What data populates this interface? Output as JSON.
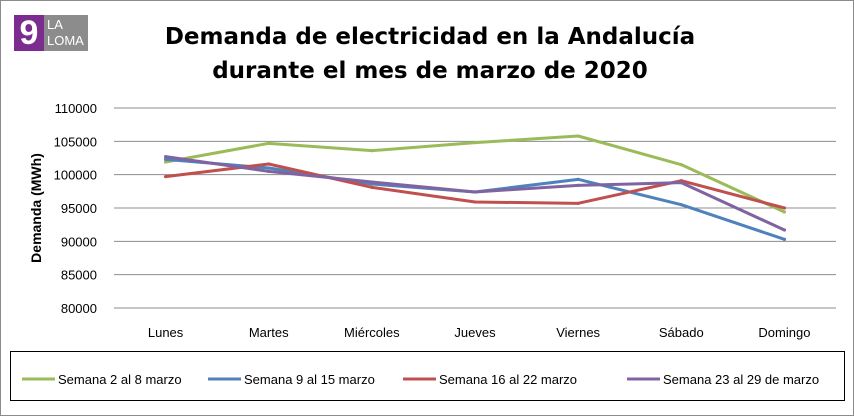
{
  "logo": {
    "number": "9",
    "line1": "LA",
    "line2": "LOMA"
  },
  "chart_data": {
    "type": "line",
    "title_line1": "Demanda de electricidad en la Andalucía",
    "title_line2": "durante el mes de marzo de 2020",
    "xlabel": "",
    "ylabel": "Demanda (MWh)",
    "ylim": [
      80000,
      110000
    ],
    "yticks": [
      80000,
      85000,
      90000,
      95000,
      100000,
      105000,
      110000
    ],
    "grid": true,
    "legend_position": "bottom",
    "categories": [
      "Lunes",
      "Martes",
      "Miércoles",
      "Jueves",
      "Viernes",
      "Sábado",
      "Domingo"
    ],
    "series": [
      {
        "name": "Semana 2 al 8 marzo",
        "color": "#9bbb59",
        "values": [
          101900,
          104700,
          103600,
          104800,
          105800,
          101500,
          94400
        ]
      },
      {
        "name": "Semana 9 al 15 marzo",
        "color": "#4f81bd",
        "values": [
          102300,
          101000,
          98600,
          97400,
          99300,
          95500,
          90300
        ]
      },
      {
        "name": "Semana 16 al 22 marzo",
        "color": "#c0504d",
        "values": [
          99700,
          101600,
          98100,
          95900,
          95700,
          99100,
          95000
        ]
      },
      {
        "name": "Semana 23 al 29 de marzo",
        "color": "#8064a2",
        "values": [
          102700,
          100500,
          98900,
          97400,
          98400,
          98800,
          91700
        ]
      }
    ]
  }
}
